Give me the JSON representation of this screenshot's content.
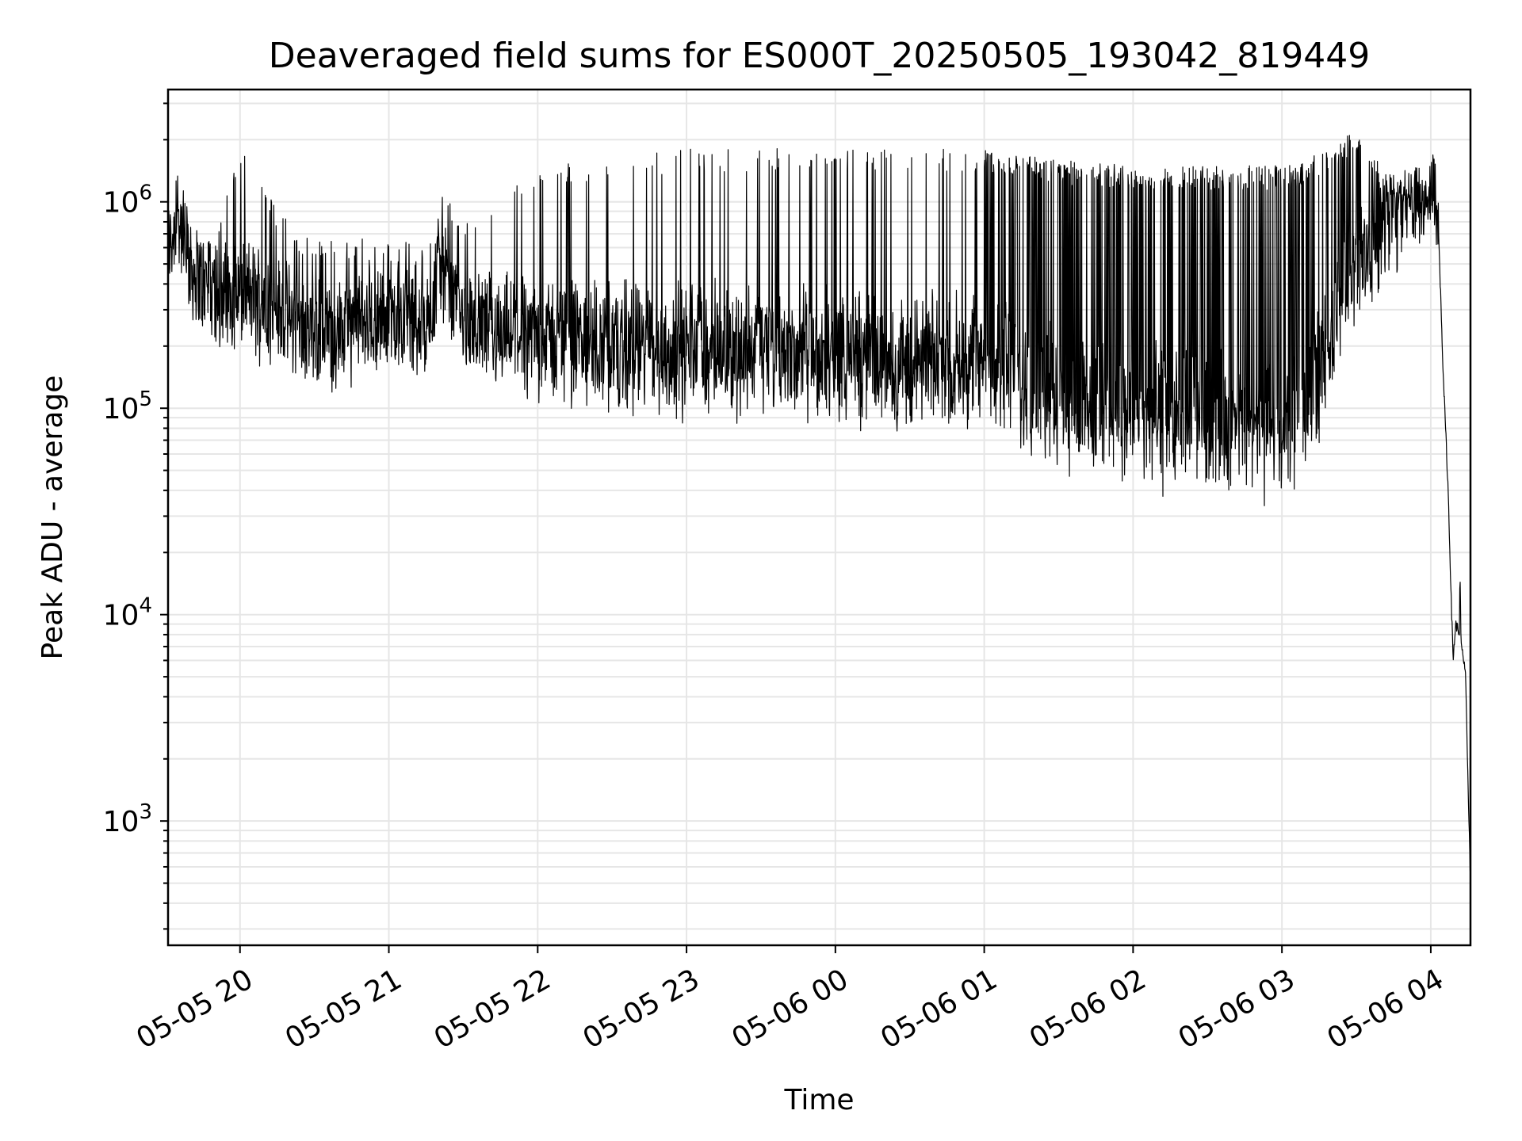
{
  "chart_data": {
    "type": "line",
    "title": "Deaveraged field sums for ES000T_20250505_193042_819449",
    "xlabel": "Time",
    "ylabel": "Peak ADU - average",
    "yscale": "log",
    "ylim": [
      250,
      3500000
    ],
    "xlim": [
      "2025-05-05 19:31",
      "2025-05-06 04:16"
    ],
    "grid": true,
    "line_color": "#000000",
    "x_ticks": [
      {
        "t": "2025-05-05 20:00",
        "label": "05-05 20"
      },
      {
        "t": "2025-05-05 21:00",
        "label": "05-05 21"
      },
      {
        "t": "2025-05-05 22:00",
        "label": "05-05 22"
      },
      {
        "t": "2025-05-05 23:00",
        "label": "05-05 23"
      },
      {
        "t": "2025-05-06 00:00",
        "label": "05-06 00"
      },
      {
        "t": "2025-05-06 01:00",
        "label": "05-06 01"
      },
      {
        "t": "2025-05-06 02:00",
        "label": "05-06 02"
      },
      {
        "t": "2025-05-06 03:00",
        "label": "05-06 03"
      },
      {
        "t": "2025-05-06 04:00",
        "label": "05-06 04"
      }
    ],
    "y_ticks": [
      {
        "value": 1000,
        "base": "10",
        "exp": "3"
      },
      {
        "value": 10000,
        "base": "10",
        "exp": "4"
      },
      {
        "value": 100000,
        "base": "10",
        "exp": "5"
      },
      {
        "value": 1000000,
        "base": "10",
        "exp": "6"
      }
    ],
    "series": [
      {
        "values": [
          {
            "t": "2025-05-05 19:31",
            "baseline": 500000,
            "peak": 700000
          },
          {
            "t": "2025-05-05 19:35",
            "baseline": 700000,
            "peak": 1600000
          },
          {
            "t": "2025-05-05 19:40",
            "baseline": 400000,
            "peak": 700000
          },
          {
            "t": "2025-05-05 19:50",
            "baseline": 280000,
            "peak": 650000
          },
          {
            "t": "2025-05-05 20:00",
            "baseline": 250000,
            "peak": 2000000
          },
          {
            "t": "2025-05-05 20:15",
            "baseline": 230000,
            "peak": 900000
          },
          {
            "t": "2025-05-05 20:30",
            "baseline": 170000,
            "peak": 650000
          },
          {
            "t": "2025-05-05 20:45",
            "baseline": 180000,
            "peak": 650000
          },
          {
            "t": "2025-05-05 21:00",
            "baseline": 230000,
            "peak": 700000
          },
          {
            "t": "2025-05-05 21:15",
            "baseline": 180000,
            "peak": 600000
          },
          {
            "t": "2025-05-05 21:20",
            "baseline": 400000,
            "peak": 1100000
          },
          {
            "t": "2025-05-05 21:30",
            "baseline": 190000,
            "peak": 900000
          },
          {
            "t": "2025-05-05 22:00",
            "baseline": 150000,
            "peak": 1500000
          },
          {
            "t": "2025-05-05 22:30",
            "baseline": 130000,
            "peak": 1700000
          },
          {
            "t": "2025-05-05 23:00",
            "baseline": 120000,
            "peak": 1800000
          },
          {
            "t": "2025-05-05 23:30",
            "baseline": 125000,
            "peak": 1800000
          },
          {
            "t": "2025-05-06 00:00",
            "baseline": 115000,
            "peak": 1850000
          },
          {
            "t": "2025-05-06 00:30",
            "baseline": 105000,
            "peak": 1850000
          },
          {
            "t": "2025-05-06 01:00",
            "baseline": 110000,
            "peak": 1800000
          },
          {
            "t": "2025-05-06 01:15",
            "baseline": 85000,
            "peak": 1700000
          },
          {
            "t": "2025-05-06 01:30",
            "baseline": 65000,
            "peak": 1600000
          },
          {
            "t": "2025-05-06 02:00",
            "baseline": 55000,
            "peak": 1500000
          },
          {
            "t": "2025-05-06 02:30",
            "baseline": 50000,
            "peak": 1500000
          },
          {
            "t": "2025-05-06 03:00",
            "baseline": 48000,
            "peak": 1500000
          },
          {
            "t": "2025-05-06 03:10",
            "baseline": 60000,
            "peak": 1600000
          },
          {
            "t": "2025-05-06 03:20",
            "baseline": 150000,
            "peak": 1900000
          },
          {
            "t": "2025-05-06 03:30",
            "baseline": 350000,
            "peak": 2200000
          },
          {
            "t": "2025-05-06 03:40",
            "baseline": 500000,
            "peak": 1500000
          },
          {
            "t": "2025-05-06 03:50",
            "baseline": 800000,
            "peak": 1200000
          },
          {
            "t": "2025-05-06 04:00",
            "baseline": 950000,
            "peak": 1100000
          },
          {
            "t": "2025-05-06 04:03",
            "baseline": 800000,
            "peak": 900000
          },
          {
            "t": "2025-05-06 04:05",
            "baseline": 150000,
            "peak": 150000
          },
          {
            "t": "2025-05-06 04:07",
            "baseline": 40000,
            "peak": 40000
          },
          {
            "t": "2025-05-06 04:08",
            "baseline": 15000,
            "peak": 15000
          },
          {
            "t": "2025-05-06 04:09",
            "baseline": 6000,
            "peak": 6000
          },
          {
            "t": "2025-05-06 04:10",
            "baseline": 9000,
            "peak": 10000
          },
          {
            "t": "2025-05-06 04:12",
            "baseline": 8000,
            "peak": 9000
          },
          {
            "t": "2025-05-06 04:14",
            "baseline": 5000,
            "peak": 5000
          },
          {
            "t": "2025-05-06 04:16",
            "baseline": 500,
            "peak": 500
          }
        ]
      }
    ]
  }
}
